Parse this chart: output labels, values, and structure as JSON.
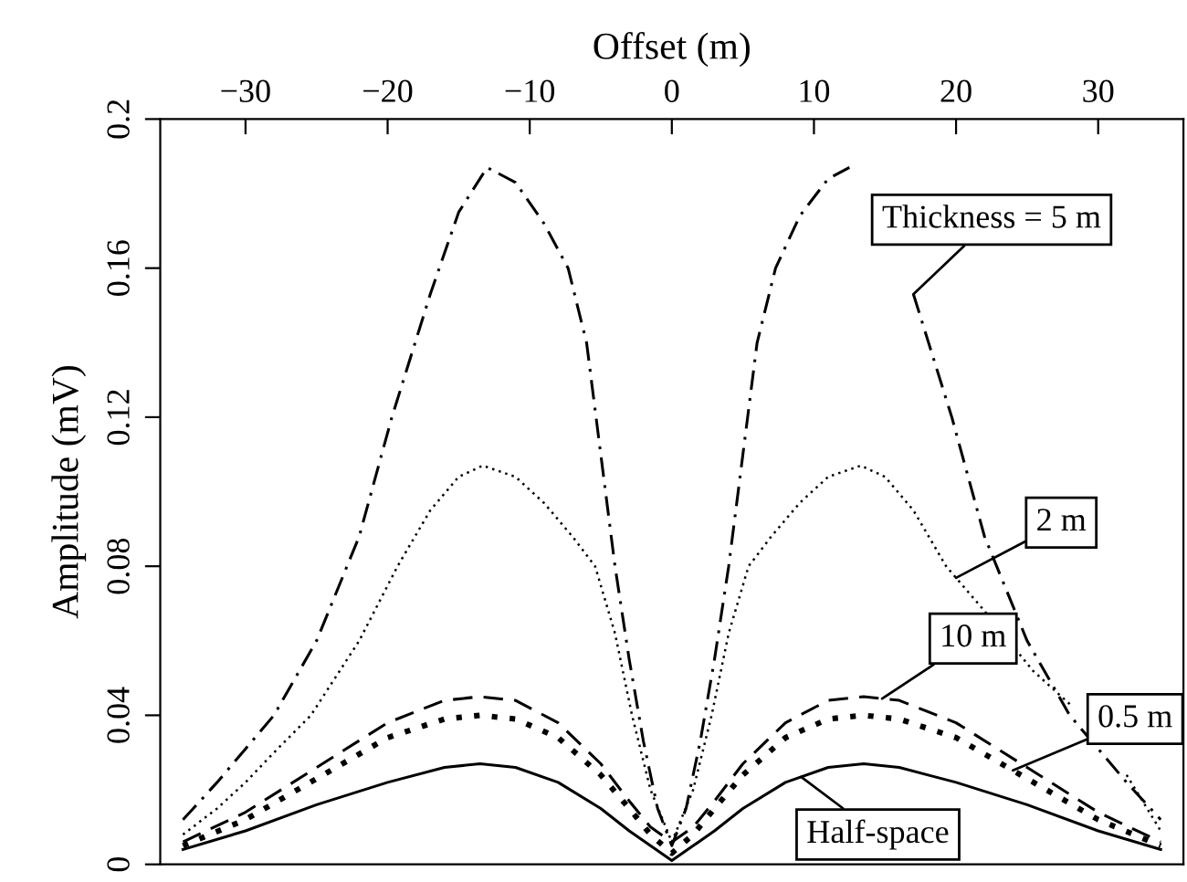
{
  "chart_data": {
    "type": "line",
    "xlabel": "Offset (m)",
    "ylabel": "Amplitude (mV)",
    "xlim": [
      -36,
      36
    ],
    "xticks": [
      {
        "value": -30,
        "label": "−30"
      },
      {
        "value": -20,
        "label": "−20"
      },
      {
        "value": -10,
        "label": "−10"
      },
      0,
      10,
      20,
      30
    ],
    "ylim": [
      0,
      0.2
    ],
    "yticks": [
      0,
      0.04,
      0.08,
      0.12,
      0.16,
      0.2
    ],
    "grid": false,
    "legend": "right",
    "marker": "none",
    "series": [
      {
        "name": "Thickness = 5 m",
        "color": "#000000",
        "line_style": "dashdot",
        "x": [
          -34.4,
          -32,
          -30,
          -28,
          -25,
          -22,
          -19.7,
          -17,
          -15,
          -13,
          -11,
          -9,
          -7.3,
          -6,
          -5,
          -4,
          -3,
          -2,
          -1,
          0,
          1,
          2,
          3,
          4,
          5,
          6,
          7.3,
          9,
          11,
          12.5,
          15,
          17,
          19.7,
          22,
          25,
          28,
          30,
          32,
          34.4
        ],
        "values": [
          0.012,
          0.022,
          0.031,
          0.04,
          0.06,
          0.088,
          0.12,
          0.153,
          0.175,
          0.187,
          0.183,
          0.172,
          0.16,
          0.14,
          0.11,
          0.08,
          0.055,
          0.033,
          0.015,
          0.005,
          0.015,
          0.033,
          0.055,
          0.08,
          0.11,
          0.14,
          0.16,
          0.174,
          0.184,
          0.187,
          null,
          0.153,
          0.12,
          0.088,
          0.06,
          0.04,
          0.031,
          0.022,
          0.012
        ]
      },
      {
        "name": "2 m",
        "color": "#000000",
        "line_style": "dotted",
        "x": [
          -34.4,
          -32,
          -30,
          -28,
          -25.4,
          -22,
          -19.3,
          -17,
          -15,
          -13.3,
          -11,
          -9,
          -7,
          -5.4,
          -4,
          -2.8,
          -1.5,
          0,
          1.5,
          2.8,
          4,
          5.4,
          7,
          9,
          11,
          13.3,
          15,
          17,
          19.3,
          22,
          25.4,
          28,
          30,
          32,
          34.4
        ],
        "values": [
          0.008,
          0.015,
          0.022,
          0.03,
          0.04,
          0.06,
          0.08,
          0.095,
          0.104,
          0.107,
          0.104,
          0.097,
          0.088,
          0.08,
          0.062,
          0.04,
          0.02,
          0.006,
          0.02,
          0.04,
          0.062,
          0.08,
          0.088,
          0.097,
          0.104,
          0.107,
          0.104,
          0.095,
          0.08,
          0.068,
          0.052,
          0.043,
          null,
          0.024,
          0.009
        ]
      },
      {
        "name": "10 m",
        "color": "#000000",
        "line_style": "dashed",
        "x": [
          -34.4,
          -30,
          -25,
          -20,
          -16,
          -13.5,
          -11,
          -8,
          -5,
          -3,
          -1.5,
          0,
          1.5,
          3,
          5,
          8,
          11,
          13.5,
          16,
          20,
          25,
          30,
          34.4
        ],
        "values": [
          0.006,
          0.014,
          0.026,
          0.038,
          0.044,
          0.045,
          0.044,
          0.038,
          0.027,
          0.017,
          0.01,
          0.006,
          0.01,
          0.017,
          0.027,
          0.038,
          0.044,
          0.045,
          0.044,
          0.038,
          0.026,
          0.014,
          0.006
        ]
      },
      {
        "name": "0.5 m",
        "color": "#000000",
        "line_style": "dotted",
        "x": [
          -34.4,
          -30,
          -25,
          -20,
          -16,
          -13.5,
          -11,
          -8,
          -5,
          -3,
          -1.5,
          0,
          1.5,
          3,
          5,
          8,
          11,
          13.5,
          16,
          20,
          25,
          30,
          34.4
        ],
        "values": [
          0.005,
          0.012,
          0.023,
          0.034,
          0.039,
          0.04,
          0.039,
          0.034,
          0.024,
          0.015,
          0.008,
          0.003,
          0.008,
          0.015,
          0.024,
          0.034,
          0.039,
          0.04,
          0.039,
          0.034,
          0.023,
          0.012,
          0.005
        ]
      },
      {
        "name": "Half-space",
        "color": "#000000",
        "line_style": "solid",
        "x": [
          -34.4,
          -30,
          -25,
          -20,
          -16,
          -13.5,
          -11,
          -8,
          -5,
          -3,
          -1.5,
          0,
          1.5,
          3,
          5,
          8,
          11,
          13.5,
          16,
          20,
          25,
          30,
          34.4
        ],
        "values": [
          0.004,
          0.009,
          0.016,
          0.022,
          0.026,
          0.027,
          0.026,
          0.022,
          0.015,
          0.009,
          0.005,
          0.001,
          0.005,
          0.009,
          0.015,
          0.022,
          0.026,
          0.027,
          0.026,
          0.022,
          0.016,
          0.009,
          0.004
        ]
      }
    ]
  }
}
